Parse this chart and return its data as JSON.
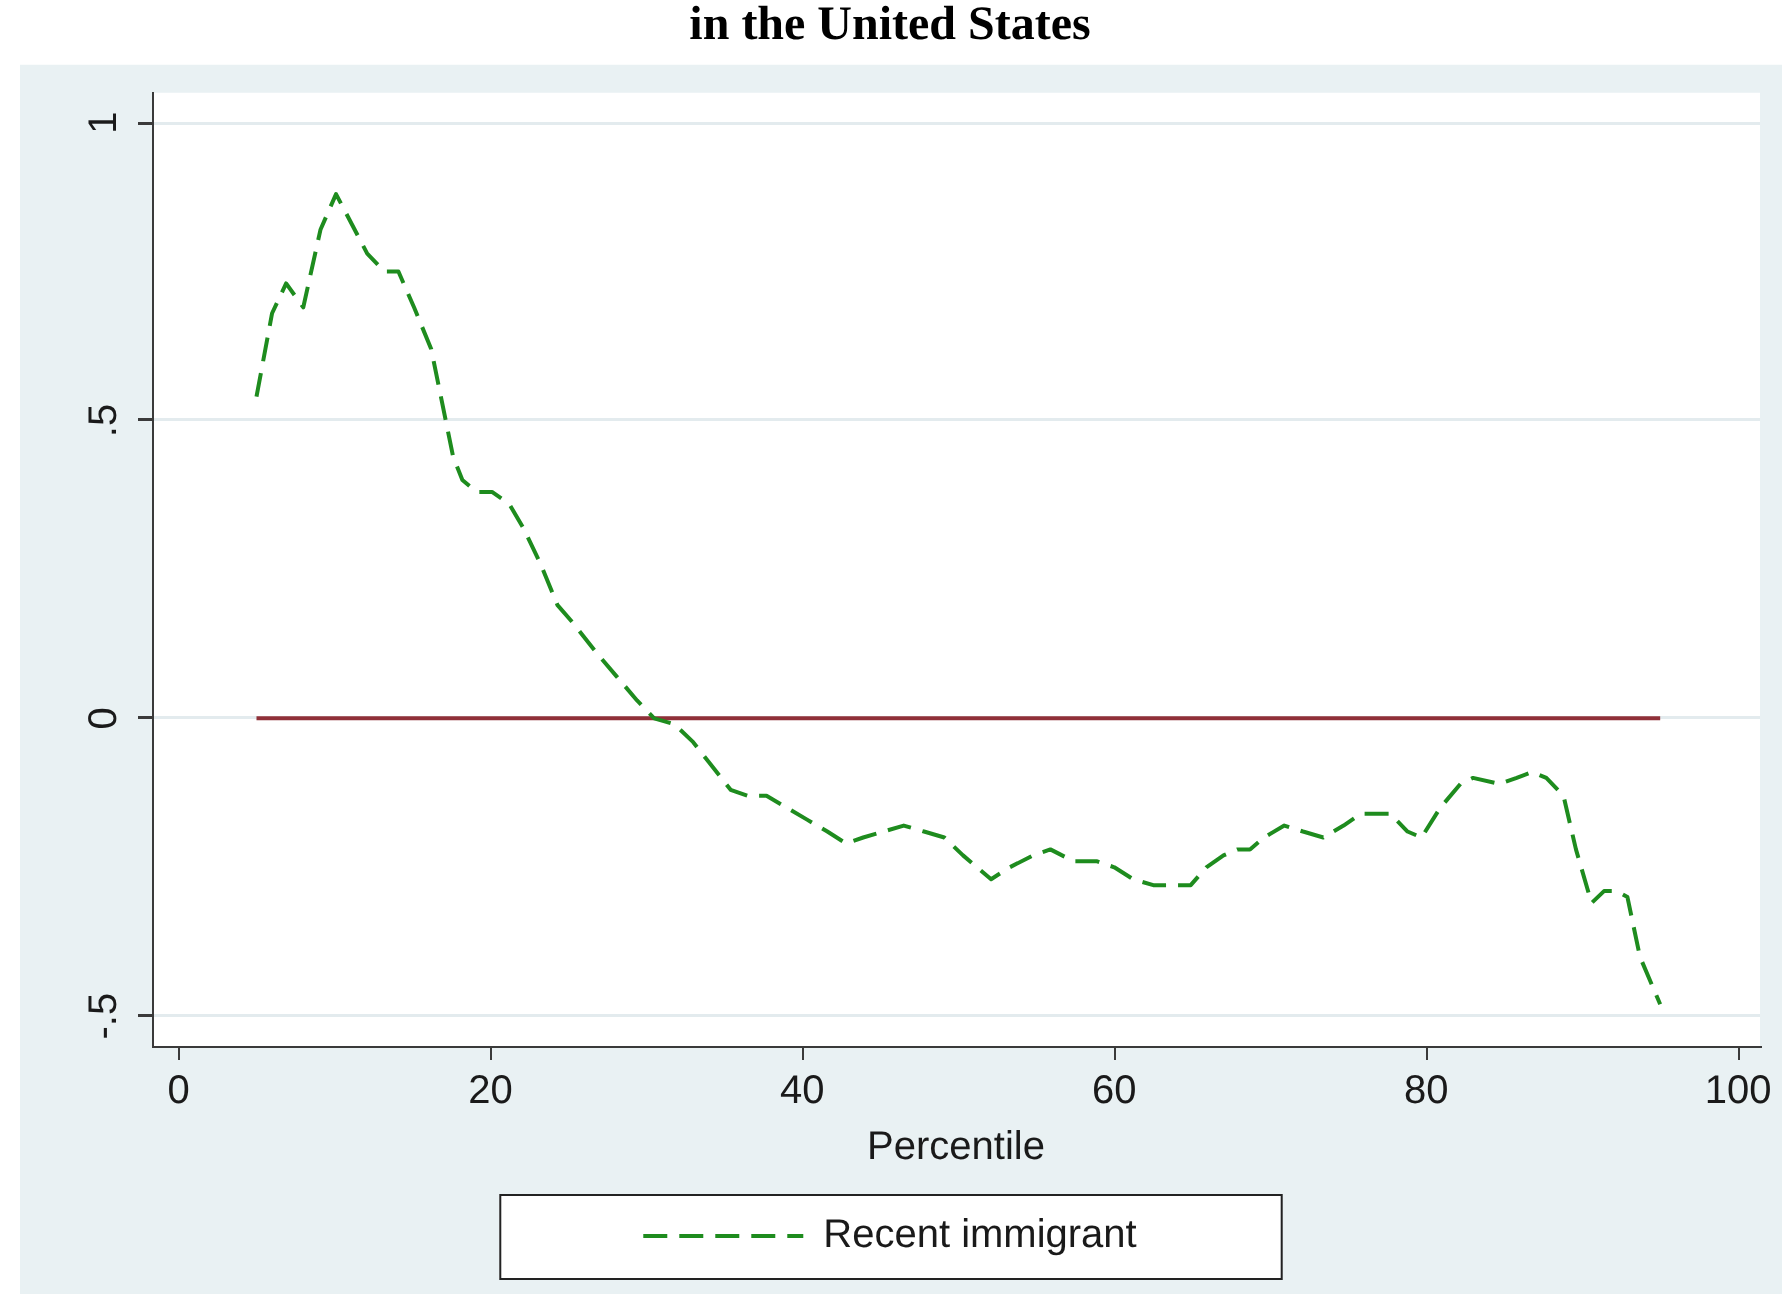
{
  "chart_data": {
    "type": "line",
    "title": "in the United States",
    "xlabel": "Percentile",
    "xlim": [
      -1.7,
      101.4
    ],
    "ylim": [
      -0.55,
      1.05
    ],
    "xticks": [
      0,
      20,
      40,
      60,
      80,
      100
    ],
    "yticks": [
      {
        "value": -0.5,
        "label": "-.5"
      },
      0,
      {
        "value": 0.5,
        "label": ".5"
      },
      1
    ],
    "grid": "y",
    "legend": "bottom",
    "series": [
      {
        "name": "Recent immigrant",
        "color": "#1e8c1e",
        "line_style": "dashed",
        "x": [
          5,
          6.0,
          6.9,
          8.0,
          9.1,
          10.1,
          12.1,
          13.2,
          14.1,
          15.1,
          16.2,
          17.6,
          18.2,
          19.1,
          20.1,
          21.2,
          22.1,
          23.2,
          24.3,
          25.3,
          26.8,
          28.1,
          29.4,
          30.5,
          31.8,
          33.0,
          35.4,
          36.5,
          37.7,
          39.0,
          40.3,
          41.6,
          42.8,
          43.9,
          45.2,
          46.5,
          47.8,
          49.1,
          50.3,
          52.1,
          53.3,
          54.8,
          55.9,
          57.4,
          58.9,
          60.0,
          61.2,
          62.5,
          63.8,
          64.9,
          65.9,
          67.0,
          67.9,
          68.7,
          69.6,
          70.9,
          72.1,
          73.4,
          74.7,
          75.8,
          76.8,
          77.7,
          78.8,
          79.7,
          80.9,
          82.2,
          83.0,
          84.7,
          85.8,
          86.8,
          87.7,
          88.8,
          89.6,
          90.6,
          91.4,
          92.2,
          92.9,
          93.7,
          95
        ],
        "values": [
          0.54,
          0.68,
          0.73,
          0.69,
          0.82,
          0.88,
          0.78,
          0.75,
          0.75,
          0.69,
          0.62,
          0.44,
          0.4,
          0.38,
          0.38,
          0.36,
          0.32,
          0.26,
          0.19,
          0.16,
          0.11,
          0.07,
          0.03,
          0.0,
          -0.01,
          -0.04,
          -0.12,
          -0.13,
          -0.13,
          -0.15,
          -0.17,
          -0.19,
          -0.21,
          -0.2,
          -0.19,
          -0.18,
          -0.19,
          -0.2,
          -0.23,
          -0.27,
          -0.25,
          -0.23,
          -0.22,
          -0.24,
          -0.24,
          -0.25,
          -0.27,
          -0.28,
          -0.28,
          -0.28,
          -0.25,
          -0.23,
          -0.22,
          -0.22,
          -0.2,
          -0.18,
          -0.19,
          -0.2,
          -0.18,
          -0.16,
          -0.16,
          -0.16,
          -0.19,
          -0.2,
          -0.15,
          -0.11,
          -0.1,
          -0.11,
          -0.1,
          -0.09,
          -0.1,
          -0.13,
          -0.22,
          -0.31,
          -0.29,
          -0.29,
          -0.3,
          -0.4,
          -0.48
        ]
      },
      {
        "color": "#903038",
        "line_style": "solid",
        "x": [
          5,
          95
        ],
        "values": [
          0,
          0
        ]
      }
    ]
  }
}
